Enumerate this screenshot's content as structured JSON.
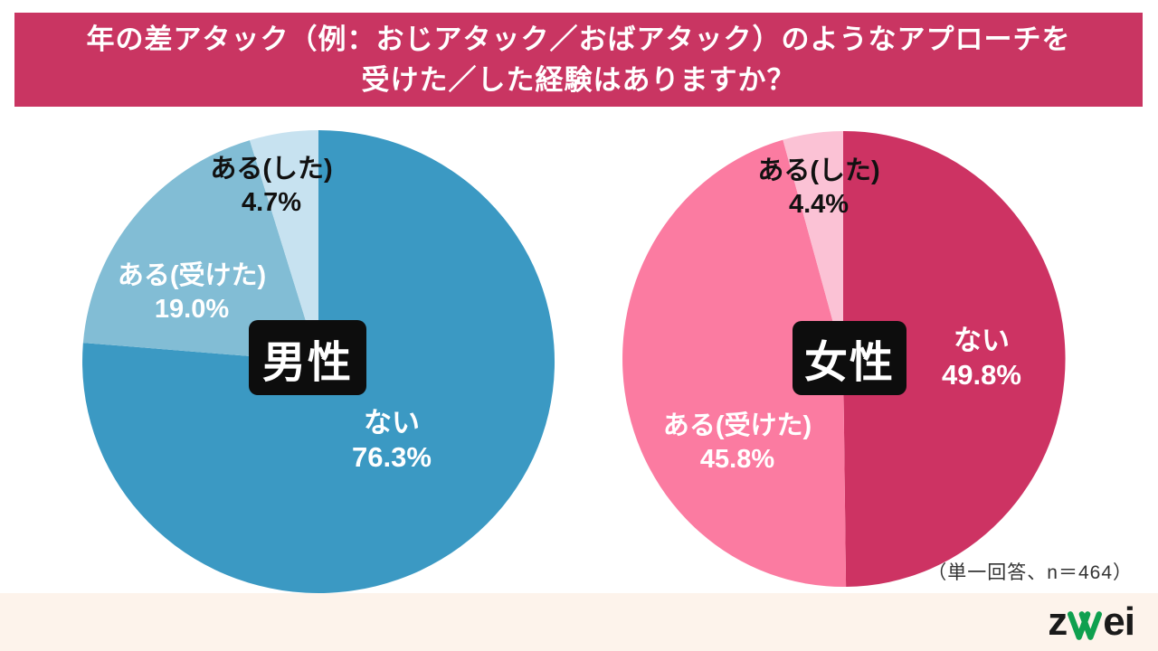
{
  "banner": {
    "line1": "年の差アタック（例：おじアタック／おばアタック）のようなアプローチを",
    "line2": "受けた／した経験はありますか？",
    "bg_color": "#C93562",
    "text_color": "#FFFFFF"
  },
  "note": "（単一回答、n＝464）",
  "footer": {
    "bg_color": "#FDF3EB",
    "logo_text_start": "z",
    "logo_text_end": "ei",
    "logo_green": "#0FA04F",
    "logo_text_color": "#1A1A1A"
  },
  "badge_bg_color": "#0D0D0D",
  "chart_data": [
    {
      "type": "pie",
      "title": "男性",
      "question": "年の差アタック（例：おじアタック／おばアタック）のようなアプローチを受けた／した経験はありますか？",
      "n": 464,
      "start_angle_deg": 0,
      "direction": "clockwise",
      "slices": [
        {
          "label": "ない",
          "value": 76.3,
          "display": "76.3%",
          "color": "#3B99C3"
        },
        {
          "label": "ある(受けた)",
          "value": 19.0,
          "display": "19.0%",
          "color": "#82BDD5"
        },
        {
          "label": "ある(した)",
          "value": 4.7,
          "display": "4.7%",
          "color": "#C7E2F0"
        }
      ]
    },
    {
      "type": "pie",
      "title": "女性",
      "question": "年の差アタック（例：おじアタック／おばアタック）のようなアプローチを受けた／した経験はありますか？",
      "n": 464,
      "start_angle_deg": 0,
      "direction": "clockwise",
      "slices": [
        {
          "label": "ない",
          "value": 49.8,
          "display": "49.8%",
          "color": "#CD3363"
        },
        {
          "label": "ある(受けた)",
          "value": 45.8,
          "display": "45.8%",
          "color": "#FB7BA1"
        },
        {
          "label": "ある(した)",
          "value": 4.4,
          "display": "4.4%",
          "color": "#FBC2D5"
        }
      ]
    }
  ]
}
